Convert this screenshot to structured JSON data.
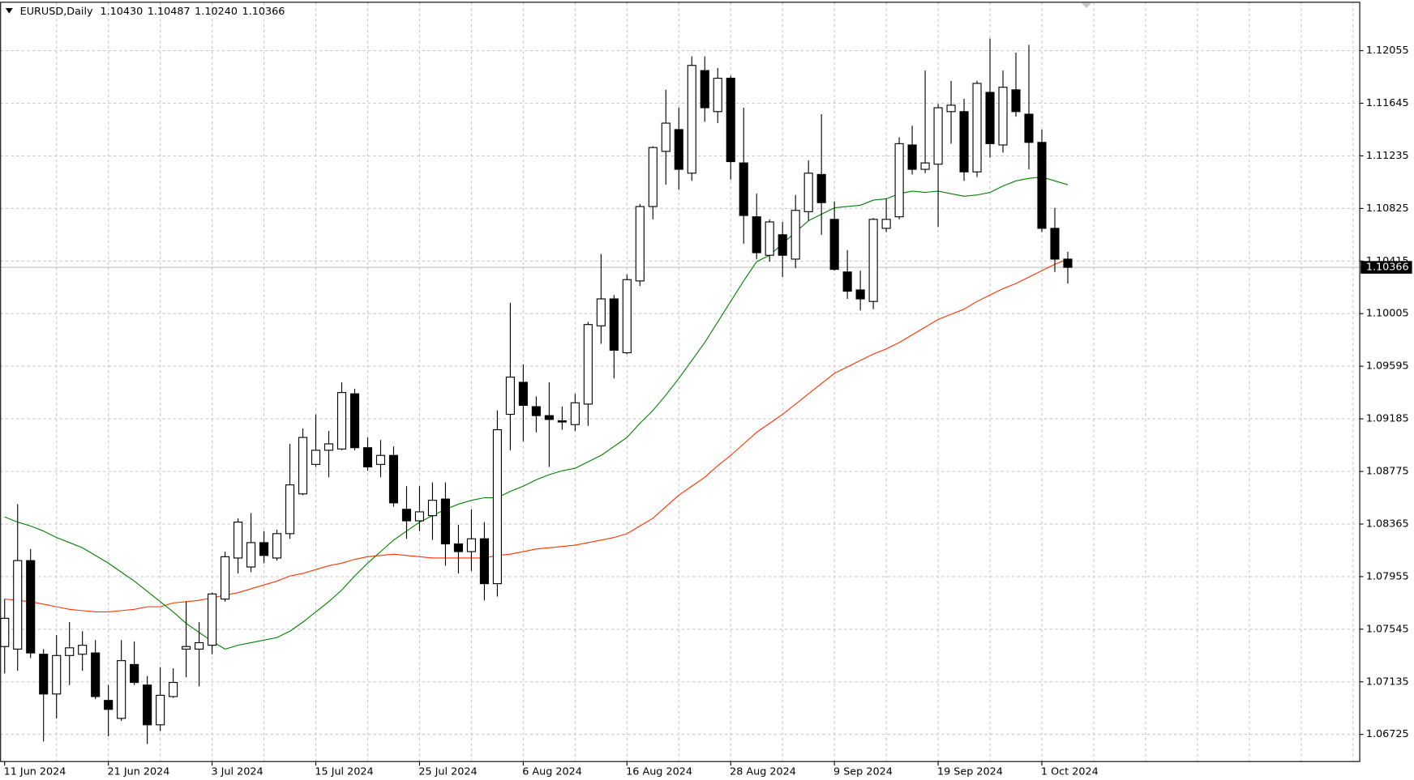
{
  "chart_data": {
    "type": "candlestick",
    "symbol": "EURUSD,Daily",
    "last_labels": [
      "1.10430",
      "1.10487",
      "1.10240",
      "1.10366"
    ],
    "categories": [
      "11 Jun 2024",
      null,
      null,
      null,
      null,
      null,
      null,
      null,
      "21 Jun 2024",
      null,
      null,
      null,
      null,
      null,
      null,
      null,
      "3 Jul 2024",
      null,
      null,
      null,
      null,
      null,
      null,
      null,
      "15 Jul 2024",
      null,
      null,
      null,
      null,
      null,
      null,
      null,
      "25 Jul 2024",
      null,
      null,
      null,
      null,
      null,
      null,
      null,
      "6 Aug 2024",
      null,
      null,
      null,
      null,
      null,
      null,
      null,
      "16 Aug 2024",
      null,
      null,
      null,
      null,
      null,
      null,
      null,
      "28 Aug 2024",
      null,
      null,
      null,
      null,
      null,
      null,
      null,
      "9 Sep 2024",
      null,
      null,
      null,
      null,
      null,
      null,
      null,
      "19 Sep 2024",
      null,
      null,
      null,
      null,
      null,
      null,
      null,
      "1 Oct 2024",
      null,
      null
    ],
    "open": [
      1.0741,
      1.0739,
      1.0808,
      1.0735,
      1.0704,
      1.0734,
      1.0735,
      1.0736,
      1.0699,
      1.0685,
      1.0727,
      1.0711,
      1.068,
      1.0702,
      1.0739,
      1.0739,
      1.0742,
      1.0778,
      1.081,
      1.0803,
      1.0822,
      1.081,
      1.0829,
      1.086,
      1.0883,
      1.0894,
      1.0895,
      1.0938,
      1.0896,
      1.0883,
      1.089,
      1.0848,
      1.0839,
      1.0843,
      1.0856,
      1.0821,
      1.0815,
      1.0825,
      1.079,
      1.0922,
      1.0947,
      1.0928,
      1.0921,
      1.0917,
      1.0914,
      1.093,
      1.0991,
      1.1012,
      1.097,
      1.1026,
      1.1084,
      1.1127,
      1.1144,
      1.111,
      1.119,
      1.1158,
      1.1184,
      1.1118,
      1.1076,
      1.1046,
      1.1062,
      1.1043,
      1.108,
      1.1109,
      1.1074,
      1.1033,
      1.1019,
      1.101,
      1.1067,
      1.1076,
      1.1132,
      1.1113,
      1.1117,
      1.1158,
      1.1158,
      1.1111,
      1.1173,
      1.1132,
      1.1175,
      1.1156,
      1.1134,
      1.1067,
      1.1043
    ],
    "high": [
      1.0778,
      1.0852,
      1.0817,
      1.0739,
      1.075,
      1.076,
      1.0753,
      1.0746,
      1.0711,
      1.0746,
      1.0745,
      1.0718,
      1.0725,
      1.0724,
      1.0776,
      1.076,
      1.0783,
      1.0815,
      1.0841,
      1.0845,
      1.0831,
      1.0832,
      1.0899,
      1.0911,
      1.0922,
      1.0909,
      1.0947,
      1.0942,
      1.0904,
      1.0902,
      1.0897,
      1.0866,
      1.0866,
      1.0869,
      1.0869,
      1.0836,
      1.0848,
      1.0838,
      1.0925,
      1.1009,
      1.0961,
      1.0936,
      1.0947,
      1.0928,
      1.0938,
      1.0994,
      1.1047,
      1.1015,
      1.1031,
      1.1086,
      1.1131,
      1.1175,
      1.1161,
      1.1201,
      1.1201,
      1.1192,
      1.1186,
      1.1161,
      1.1094,
      1.1074,
      1.1072,
      1.1093,
      1.112,
      1.1156,
      1.1088,
      1.105,
      1.1034,
      1.1075,
      1.109,
      1.1138,
      1.1147,
      1.119,
      1.1164,
      1.1182,
      1.1168,
      1.1182,
      1.1215,
      1.119,
      1.1204,
      1.121,
      1.1144,
      1.1083,
      1.10487
    ],
    "low": [
      1.072,
      1.0722,
      1.0732,
      1.0667,
      1.0685,
      1.0711,
      1.0722,
      1.07,
      1.0671,
      1.0683,
      1.0711,
      1.0665,
      1.0675,
      1.0701,
      1.0717,
      1.071,
      1.0735,
      1.0776,
      1.0798,
      1.0799,
      1.0806,
      1.0808,
      1.0825,
      1.0859,
      1.0881,
      1.0873,
      1.0894,
      1.0894,
      1.0878,
      1.0873,
      1.085,
      1.0825,
      1.0831,
      1.0824,
      1.0804,
      1.0798,
      1.08,
      1.0777,
      1.078,
      1.0894,
      1.0901,
      1.0908,
      1.0881,
      1.091,
      1.0909,
      1.0913,
      1.0977,
      1.095,
      1.0969,
      1.1022,
      1.1074,
      1.1101,
      1.1097,
      1.1104,
      1.115,
      1.1149,
      1.1105,
      1.1055,
      1.1043,
      1.1041,
      1.1029,
      1.1036,
      1.1073,
      1.1062,
      1.1034,
      1.1012,
      1.1003,
      1.1004,
      1.1064,
      1.1074,
      1.1109,
      1.111,
      1.1068,
      1.1133,
      1.1104,
      1.1107,
      1.1122,
      1.1126,
      1.1154,
      1.1113,
      1.1064,
      1.1033,
      1.1024
    ],
    "close": [
      1.0763,
      1.0808,
      1.0736,
      1.0704,
      1.0734,
      1.074,
      1.0742,
      1.0702,
      1.0692,
      1.073,
      1.0713,
      1.068,
      1.0703,
      1.0713,
      1.0741,
      1.0744,
      1.0782,
      1.0811,
      1.0838,
      1.0822,
      1.0812,
      1.0829,
      1.0867,
      1.0904,
      1.0894,
      1.0899,
      1.0939,
      1.0896,
      1.0881,
      1.089,
      1.0853,
      1.0839,
      1.0846,
      1.0855,
      1.0821,
      1.0815,
      1.0825,
      1.079,
      1.091,
      1.0951,
      1.0929,
      1.0921,
      1.0918,
      1.0916,
      1.0931,
      1.0992,
      1.1012,
      1.0972,
      1.1027,
      1.1084,
      1.113,
      1.1149,
      1.1113,
      1.1194,
      1.1161,
      1.1184,
      1.1119,
      1.1077,
      1.1048,
      1.1072,
      1.1046,
      1.1081,
      1.111,
      1.1087,
      1.1035,
      1.1018,
      1.1012,
      1.1074,
      1.1074,
      1.1133,
      1.1113,
      1.1118,
      1.1161,
      1.1163,
      1.1111,
      1.118,
      1.1133,
      1.1177,
      1.1158,
      1.1134,
      1.1067,
      1.1043,
      1.10366
    ],
    "up_color": "#ffffff",
    "down_color": "#000000",
    "moving_averages": [
      {
        "color": "#008000",
        "values": [
          1.0842,
          1.0838,
          1.0835,
          1.0831,
          1.0826,
          1.0822,
          1.0818,
          1.0812,
          1.0806,
          1.0799,
          1.0792,
          1.0784,
          1.0776,
          1.0768,
          1.0759,
          1.0752,
          1.0745,
          1.0739,
          1.0742,
          1.0744,
          1.0746,
          1.0748,
          1.0753,
          1.076,
          1.0768,
          1.0776,
          1.0785,
          1.0796,
          1.0806,
          1.0815,
          1.0824,
          1.0831,
          1.0838,
          1.0843,
          1.0848,
          1.0852,
          1.0855,
          1.0857,
          1.0857,
          1.0862,
          1.0866,
          1.0871,
          1.0875,
          1.0878,
          1.088,
          1.0885,
          1.089,
          1.0897,
          1.0904,
          1.0915,
          1.0925,
          1.0937,
          1.095,
          1.0964,
          1.0978,
          1.0994,
          1.101,
          1.1026,
          1.1041,
          1.1046,
          1.1055,
          1.1064,
          1.1073,
          1.1078,
          1.1083,
          1.1084,
          1.1085,
          1.1089,
          1.109,
          1.1094,
          1.1096,
          1.1095,
          1.1096,
          1.1094,
          1.1092,
          1.1093,
          1.1095,
          1.11,
          1.1104,
          1.1106,
          1.1107,
          1.1104,
          1.1101
        ]
      },
      {
        "color": "#ff3300",
        "values": [
          1.0778,
          1.0777,
          1.0776,
          1.0774,
          1.0772,
          1.077,
          1.0769,
          1.0768,
          1.0768,
          1.0769,
          1.077,
          1.0772,
          1.0772,
          1.0775,
          1.0776,
          1.0777,
          1.0779,
          1.0781,
          1.0783,
          1.0786,
          1.0789,
          1.0792,
          1.0796,
          1.0798,
          1.0801,
          1.0804,
          1.0806,
          1.0809,
          1.0811,
          1.0812,
          1.0813,
          1.0812,
          1.0811,
          1.081,
          1.081,
          1.081,
          1.081,
          1.081,
          1.0812,
          1.0813,
          1.0815,
          1.0817,
          1.0818,
          1.0819,
          1.082,
          1.0822,
          1.0824,
          1.0826,
          1.0829,
          1.0835,
          1.0841,
          1.085,
          1.0859,
          1.0866,
          1.0873,
          1.0882,
          1.089,
          1.0899,
          1.0908,
          1.0915,
          1.0922,
          1.093,
          1.0938,
          1.0946,
          1.0954,
          1.0959,
          1.0964,
          1.0969,
          1.0973,
          1.0978,
          1.0984,
          1.099,
          1.0996,
          1.1,
          1.1004,
          1.101,
          1.1015,
          1.102,
          1.1024,
          1.1029,
          1.1034,
          1.1039,
          1.1043
        ]
      }
    ],
    "ylim": [
      1.0651,
      1.1245
    ],
    "yticks": [
      1.06725,
      1.07135,
      1.07545,
      1.07955,
      1.08365,
      1.08775,
      1.09185,
      1.09595,
      1.10005,
      1.10415,
      1.10825,
      1.11235,
      1.11645,
      1.12055
    ],
    "grid": true
  }
}
